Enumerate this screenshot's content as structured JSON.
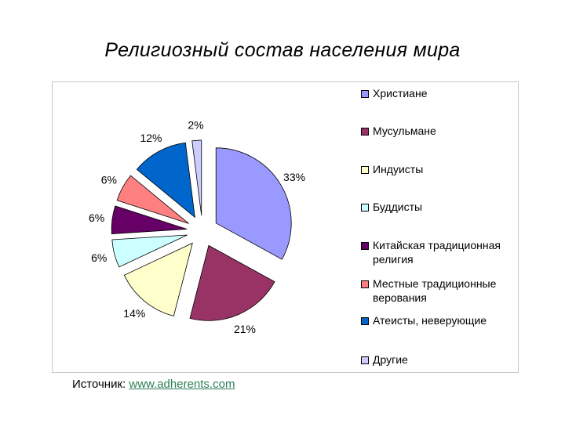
{
  "title": "Религиозный состав населения мира",
  "source": {
    "label": "Источник:",
    "link": "www.adherents.com"
  },
  "chart_data": {
    "type": "pie",
    "title": "Религиозный состав населения мира",
    "exploded": true,
    "legend_position": "right",
    "slices": [
      {
        "label": "Христиане",
        "value": 33,
        "value_label": "33%",
        "color": "#9999ff"
      },
      {
        "label": "Мусульмане",
        "value": 21,
        "value_label": "21%",
        "color": "#993366"
      },
      {
        "label": "Индуисты",
        "value": 14,
        "value_label": "14%",
        "color": "#ffffcc"
      },
      {
        "label": "Буддисты",
        "value": 6,
        "value_label": "6%",
        "color": "#ccffff"
      },
      {
        "label": "Китайская традиционная религия",
        "value": 6,
        "value_label": "6%",
        "color": "#660066"
      },
      {
        "label": "Местные традиционные верования",
        "value": 6,
        "value_label": "6%",
        "color": "#ff8080"
      },
      {
        "label": "Атеисты, неверующие",
        "value": 12,
        "value_label": "12%",
        "color": "#0066cc"
      },
      {
        "label": "Другие",
        "value": 2,
        "value_label": "2%",
        "color": "#ccccff"
      }
    ]
  }
}
